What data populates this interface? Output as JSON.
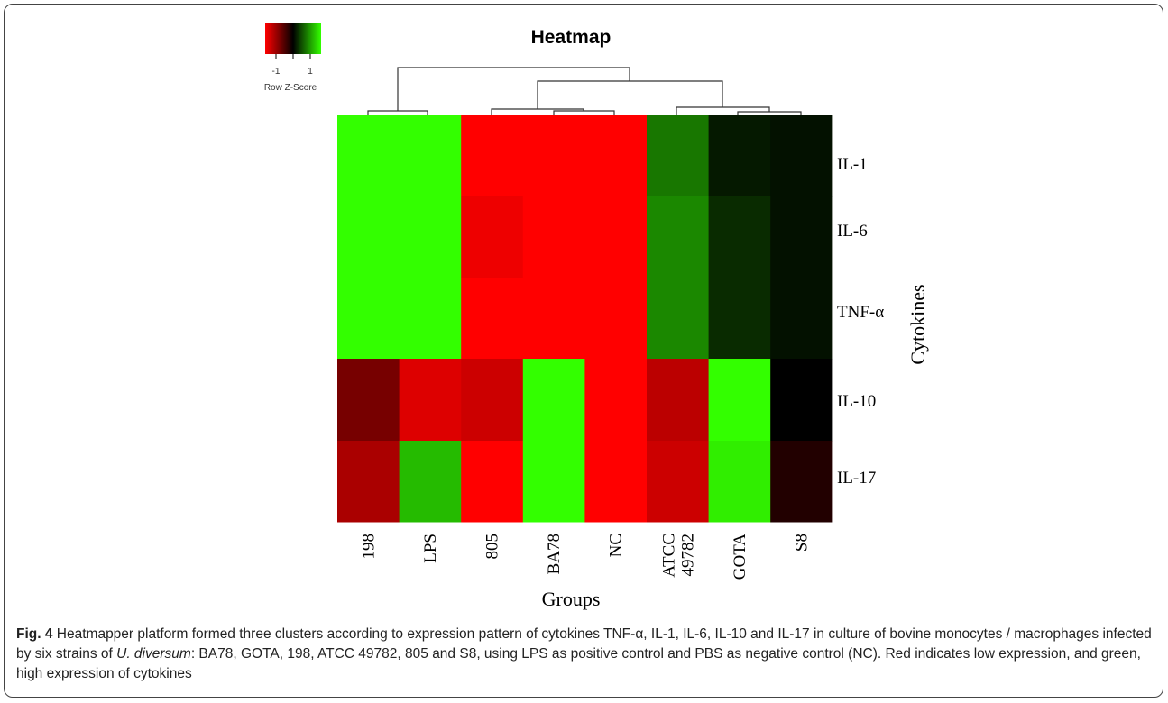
{
  "chart_data": {
    "type": "heatmap",
    "title": "Heatmap",
    "xlabel": "Groups",
    "ylabel": "Cytokines",
    "columns": [
      "198",
      "LPS",
      "805",
      "BA78",
      "NC",
      "ATCC\n49782",
      "GOTA",
      "S8"
    ],
    "rows": [
      "IL-1",
      "IL-6",
      "TNF-α",
      "IL-10",
      "IL-17"
    ],
    "values": [
      [
        1.5,
        1.5,
        -1.5,
        -1.5,
        -1.5,
        0.7,
        0.15,
        0.1
      ],
      [
        1.5,
        1.5,
        -1.4,
        -1.5,
        -1.5,
        0.8,
        0.25,
        0.1
      ],
      [
        1.5,
        1.5,
        -1.5,
        -1.5,
        -1.5,
        0.8,
        0.25,
        0.1
      ],
      [
        -0.7,
        -1.3,
        -1.2,
        1.5,
        -1.5,
        -1.1,
        1.5,
        0.0
      ],
      [
        -1.0,
        1.1,
        -1.5,
        1.5,
        -1.5,
        -1.2,
        1.4,
        -0.2
      ]
    ],
    "color_scale": {
      "low": "#ff0000",
      "mid": "#000000",
      "high": "#33ff00",
      "range": [
        -1.5,
        1.5
      ]
    },
    "legend": {
      "title": "Row Z-Score",
      "ticks": [
        "-1",
        "1"
      ],
      "placement": "top-left"
    }
  },
  "caption": {
    "fig_label": "Fig. 4",
    "text_1": " Heatmapper platform formed three clusters according to expression pattern of cytokines TNF-α, IL-1, IL-6, IL-10 and IL-17 in culture of bovine monocytes / macrophages infected by six strains of ",
    "species": "U. diversum",
    "text_2": ": BA78, GOTA, 198, ATCC 49782, 805 and S8, using LPS as positive control and PBS as negative control (NC). Red indicates low expression, and green, high expression of cytokines"
  }
}
